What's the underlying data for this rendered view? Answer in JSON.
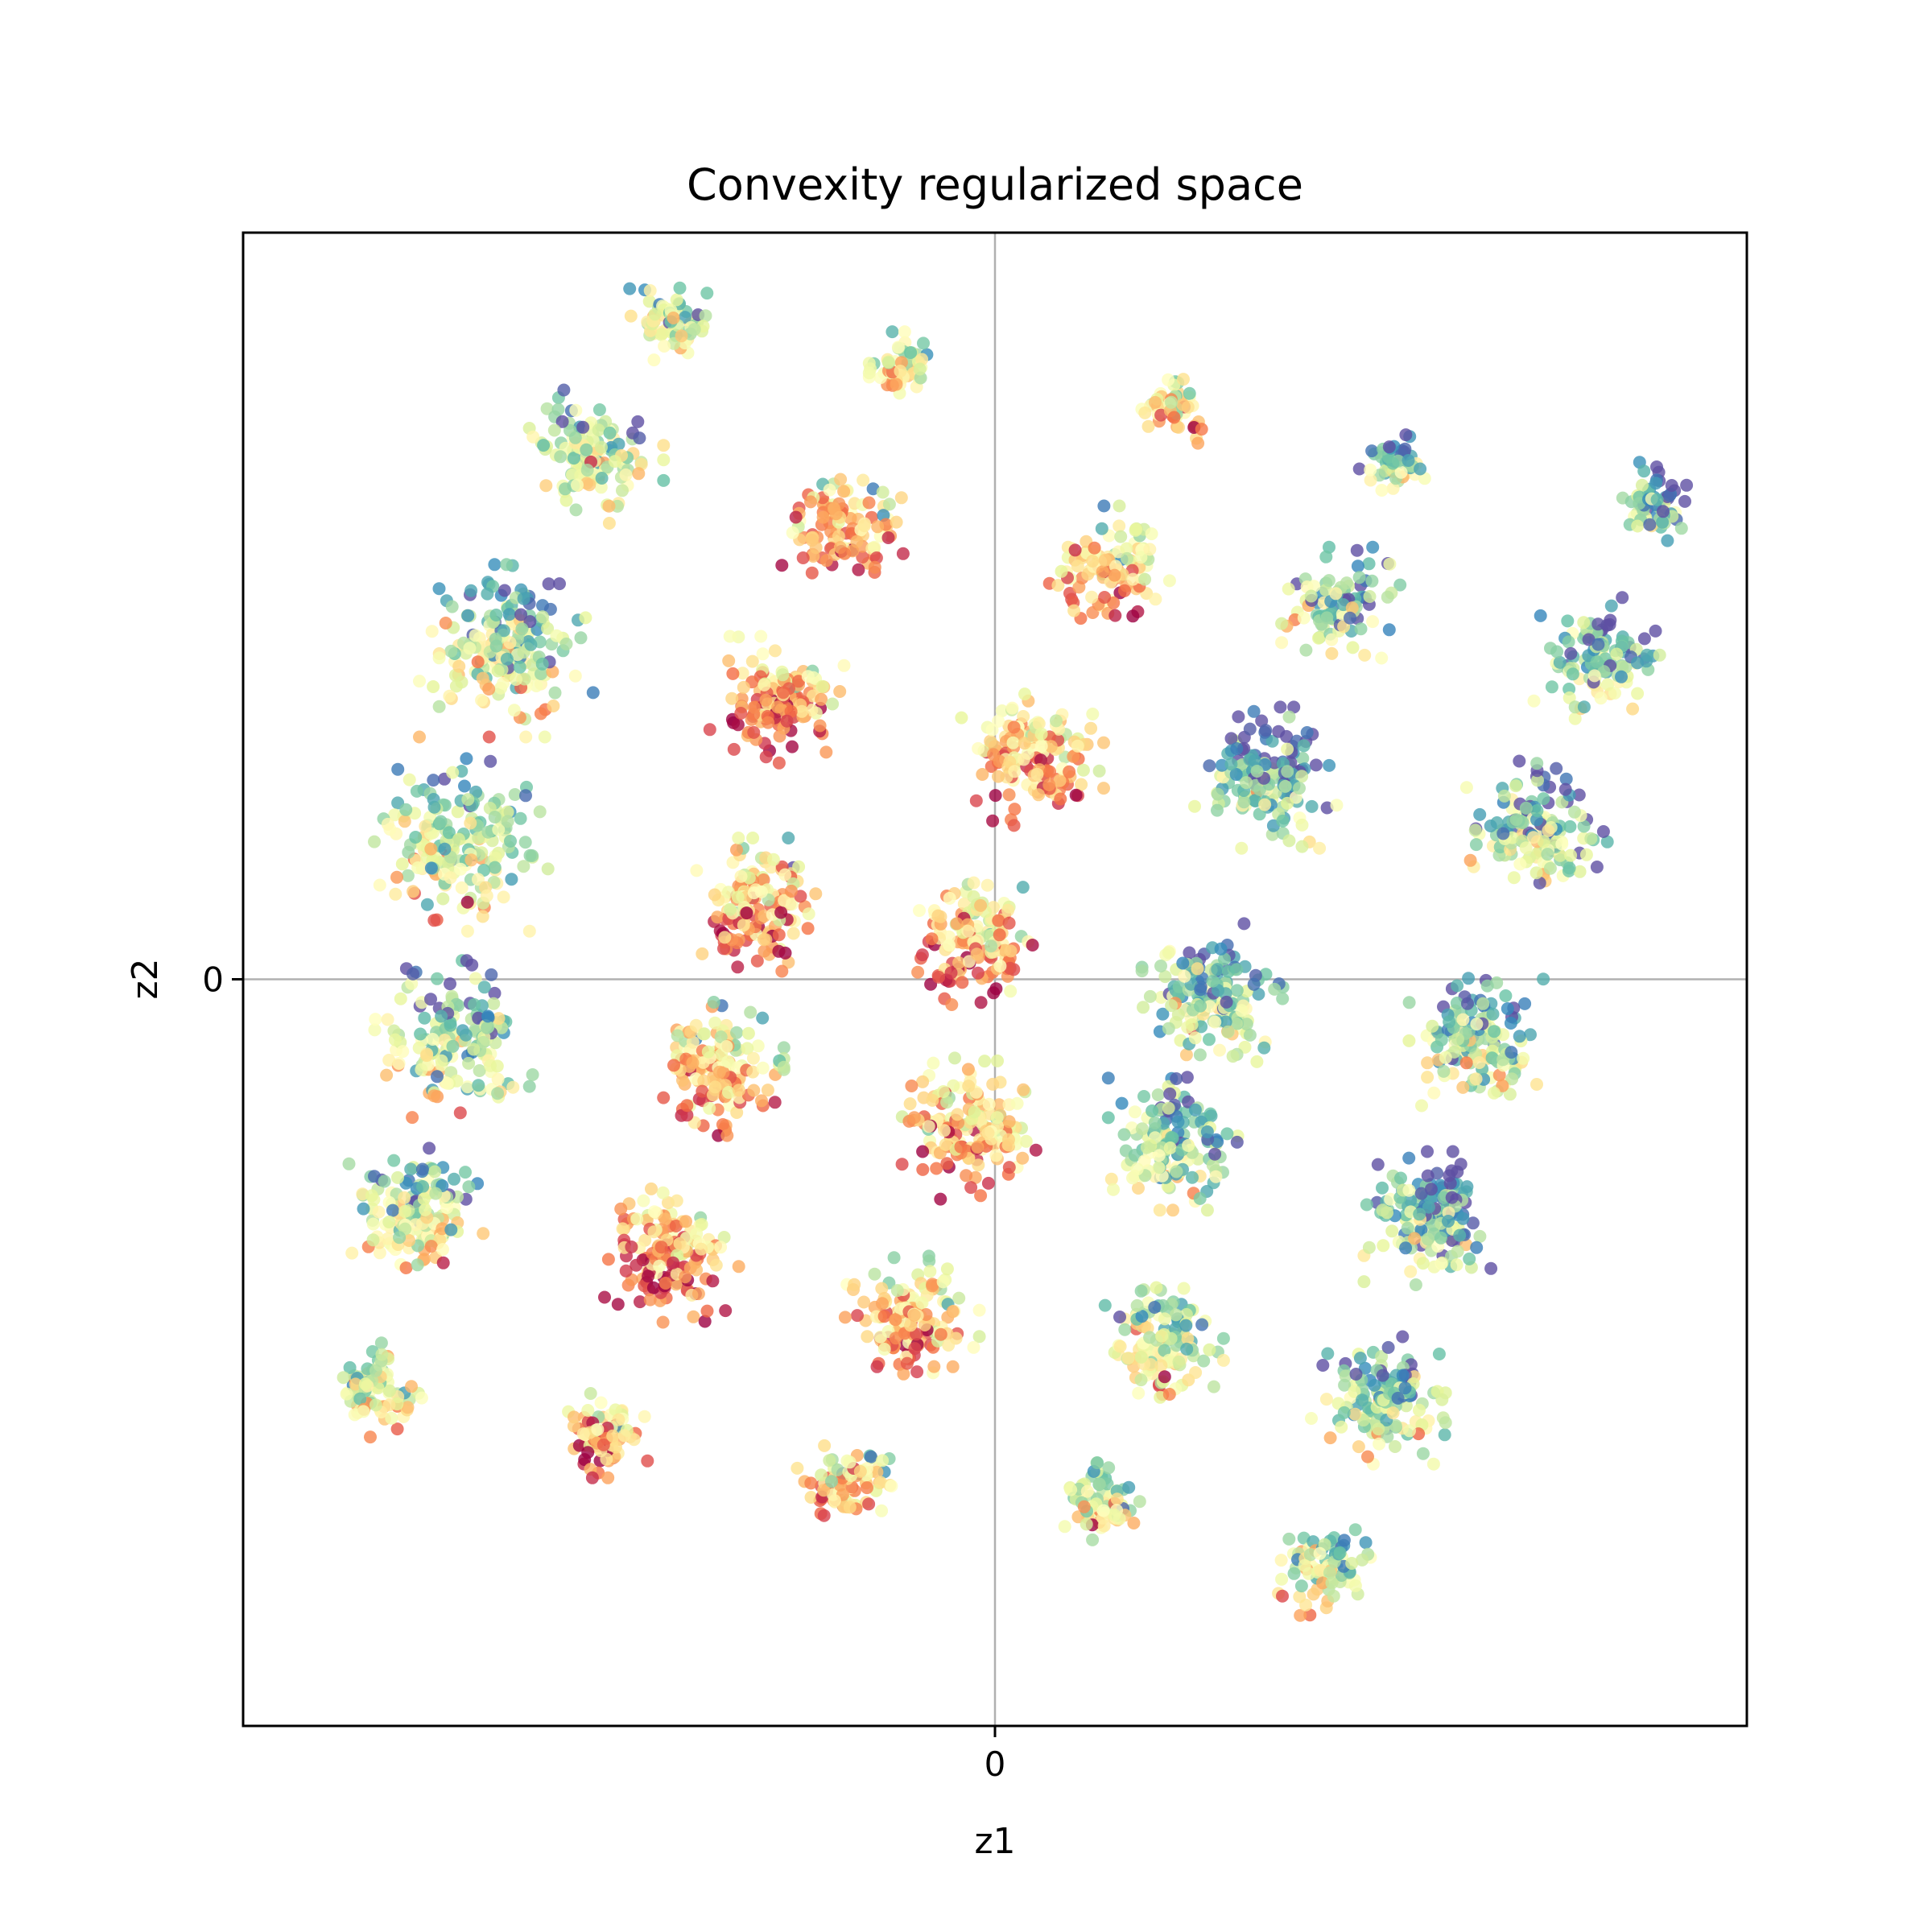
{
  "chart_data": {
    "type": "scatter",
    "title": "Convexity regularized space",
    "xlabel": "z1",
    "ylabel": "z2",
    "xlim": [
      -1.0,
      1.0
    ],
    "ylim": [
      -1.0,
      1.0
    ],
    "xticks": [
      {
        "value": 0,
        "label": "0"
      }
    ],
    "yticks": [
      {
        "value": 0,
        "label": "0"
      }
    ],
    "reference_lines": {
      "x": 0,
      "y": 0,
      "color": "#b0b0b0"
    },
    "legend": "none",
    "colormap": "Spectral",
    "colormap_stops": [
      "#9e0142",
      "#d53e4f",
      "#f46d43",
      "#fdae61",
      "#fee08b",
      "#ffffbf",
      "#e6f598",
      "#abdda4",
      "#66c2a5",
      "#3288bd",
      "#5e4fa2"
    ],
    "point_alpha": 0.8,
    "clusters": [
      {
        "x": -0.43,
        "y": 0.88,
        "spread": 0.055,
        "tone": 0.62,
        "count": 70
      },
      {
        "x": -0.12,
        "y": 0.82,
        "spread": 0.045,
        "tone": 0.5,
        "count": 55
      },
      {
        "x": 0.24,
        "y": 0.77,
        "spread": 0.05,
        "tone": 0.45,
        "count": 55
      },
      {
        "x": 0.53,
        "y": 0.69,
        "spread": 0.045,
        "tone": 0.78,
        "count": 55
      },
      {
        "x": 0.88,
        "y": 0.64,
        "spread": 0.05,
        "tone": 0.82,
        "count": 60
      },
      {
        "x": -0.53,
        "y": 0.7,
        "spread": 0.085,
        "tone": 0.62,
        "count": 130
      },
      {
        "x": -0.2,
        "y": 0.61,
        "spread": 0.08,
        "tone": 0.35,
        "count": 110
      },
      {
        "x": 0.15,
        "y": 0.55,
        "spread": 0.08,
        "tone": 0.4,
        "count": 110
      },
      {
        "x": 0.46,
        "y": 0.5,
        "spread": 0.075,
        "tone": 0.7,
        "count": 100
      },
      {
        "x": 0.8,
        "y": 0.43,
        "spread": 0.08,
        "tone": 0.78,
        "count": 110
      },
      {
        "x": -0.65,
        "y": 0.44,
        "spread": 0.11,
        "tone": 0.65,
        "count": 190
      },
      {
        "x": -0.29,
        "y": 0.37,
        "spread": 0.085,
        "tone": 0.3,
        "count": 150
      },
      {
        "x": 0.05,
        "y": 0.3,
        "spread": 0.09,
        "tone": 0.35,
        "count": 160
      },
      {
        "x": 0.36,
        "y": 0.27,
        "spread": 0.09,
        "tone": 0.82,
        "count": 160
      },
      {
        "x": 0.72,
        "y": 0.2,
        "spread": 0.09,
        "tone": 0.75,
        "count": 160
      },
      {
        "x": -0.71,
        "y": 0.18,
        "spread": 0.11,
        "tone": 0.62,
        "count": 190
      },
      {
        "x": -0.32,
        "y": 0.1,
        "spread": 0.085,
        "tone": 0.35,
        "count": 150
      },
      {
        "x": -0.03,
        "y": 0.05,
        "spread": 0.08,
        "tone": 0.35,
        "count": 140
      },
      {
        "x": 0.29,
        "y": -0.02,
        "spread": 0.09,
        "tone": 0.72,
        "count": 160
      },
      {
        "x": 0.64,
        "y": -0.08,
        "spread": 0.085,
        "tone": 0.72,
        "count": 150
      },
      {
        "x": -0.72,
        "y": -0.08,
        "spread": 0.1,
        "tone": 0.7,
        "count": 170
      },
      {
        "x": -0.37,
        "y": -0.12,
        "spread": 0.085,
        "tone": 0.4,
        "count": 150
      },
      {
        "x": -0.04,
        "y": -0.2,
        "spread": 0.09,
        "tone": 0.4,
        "count": 160
      },
      {
        "x": 0.24,
        "y": -0.22,
        "spread": 0.085,
        "tone": 0.7,
        "count": 150
      },
      {
        "x": 0.58,
        "y": -0.32,
        "spread": 0.085,
        "tone": 0.78,
        "count": 160
      },
      {
        "x": -0.77,
        "y": -0.31,
        "spread": 0.085,
        "tone": 0.62,
        "count": 150
      },
      {
        "x": -0.43,
        "y": -0.37,
        "spread": 0.085,
        "tone": 0.28,
        "count": 150
      },
      {
        "x": -0.11,
        "y": -0.46,
        "spread": 0.085,
        "tone": 0.35,
        "count": 150
      },
      {
        "x": 0.22,
        "y": -0.49,
        "spread": 0.08,
        "tone": 0.55,
        "count": 130
      },
      {
        "x": 0.51,
        "y": -0.56,
        "spread": 0.085,
        "tone": 0.68,
        "count": 140
      },
      {
        "x": -0.82,
        "y": -0.55,
        "spread": 0.06,
        "tone": 0.55,
        "count": 90
      },
      {
        "x": -0.52,
        "y": -0.61,
        "spread": 0.055,
        "tone": 0.35,
        "count": 80
      },
      {
        "x": -0.2,
        "y": -0.68,
        "spread": 0.06,
        "tone": 0.4,
        "count": 85
      },
      {
        "x": 0.14,
        "y": -0.7,
        "spread": 0.05,
        "tone": 0.55,
        "count": 75
      },
      {
        "x": 0.44,
        "y": -0.79,
        "spread": 0.06,
        "tone": 0.6,
        "count": 90
      }
    ]
  }
}
